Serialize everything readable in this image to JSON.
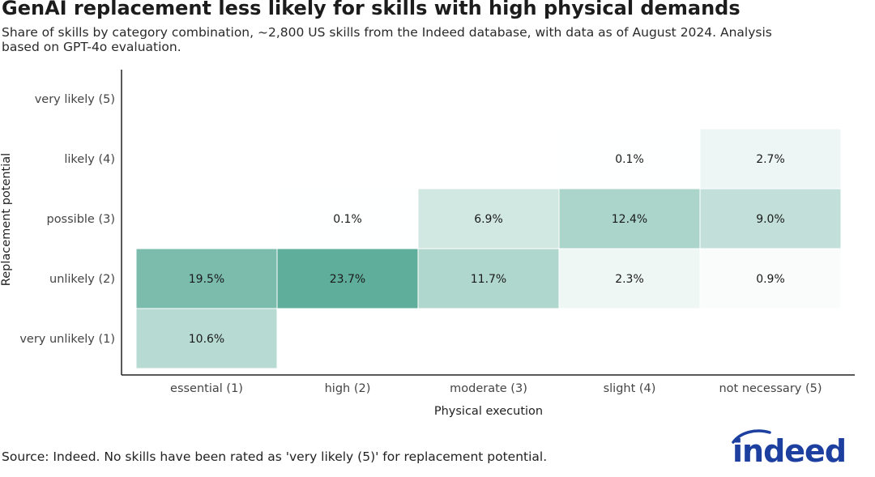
{
  "header": {
    "title": "GenAI replacement less likely for skills with high physical demands",
    "subtitle": "Share of skills by category combination, ~2,800 US skills from the Indeed database, with data as of August 2024. Analysis based on GPT-4o evaluation."
  },
  "footer": {
    "source": "Source: Indeed. No skills have been rated as 'very likely (5)' for replacement potential.",
    "logo_text": "indeed",
    "logo_color": "#1c3fa0"
  },
  "chart_data": {
    "type": "heatmap",
    "xlabel": "Physical execution",
    "ylabel": "Replacement potential",
    "x_categories": [
      "essential (1)",
      "high (2)",
      "moderate (3)",
      "slight (4)",
      "not necessary (5)"
    ],
    "y_categories": [
      "very unlikely (1)",
      "unlikely (2)",
      "possible (3)",
      "likely (4)",
      "very likely (5)"
    ],
    "max_value": 23.7,
    "color_low": "#ffffff",
    "color_high": "#5fae9b",
    "cells": [
      {
        "x": "essential (1)",
        "y": "very unlikely (1)",
        "value": 10.6,
        "label": "10.6%"
      },
      {
        "x": "essential (1)",
        "y": "unlikely (2)",
        "value": 19.5,
        "label": "19.5%"
      },
      {
        "x": "high (2)",
        "y": "unlikely (2)",
        "value": 23.7,
        "label": "23.7%"
      },
      {
        "x": "high (2)",
        "y": "possible (3)",
        "value": 0.1,
        "label": "0.1%"
      },
      {
        "x": "moderate (3)",
        "y": "unlikely (2)",
        "value": 11.7,
        "label": "11.7%"
      },
      {
        "x": "moderate (3)",
        "y": "possible (3)",
        "value": 6.9,
        "label": "6.9%"
      },
      {
        "x": "slight (4)",
        "y": "unlikely (2)",
        "value": 2.3,
        "label": "2.3%"
      },
      {
        "x": "slight (4)",
        "y": "possible (3)",
        "value": 12.4,
        "label": "12.4%"
      },
      {
        "x": "slight (4)",
        "y": "likely (4)",
        "value": 0.1,
        "label": "0.1%"
      },
      {
        "x": "not necessary (5)",
        "y": "unlikely (2)",
        "value": 0.9,
        "label": "0.9%"
      },
      {
        "x": "not necessary (5)",
        "y": "possible (3)",
        "value": 9.0,
        "label": "9.0%"
      },
      {
        "x": "not necessary (5)",
        "y": "likely (4)",
        "value": 2.7,
        "label": "2.7%"
      }
    ]
  }
}
